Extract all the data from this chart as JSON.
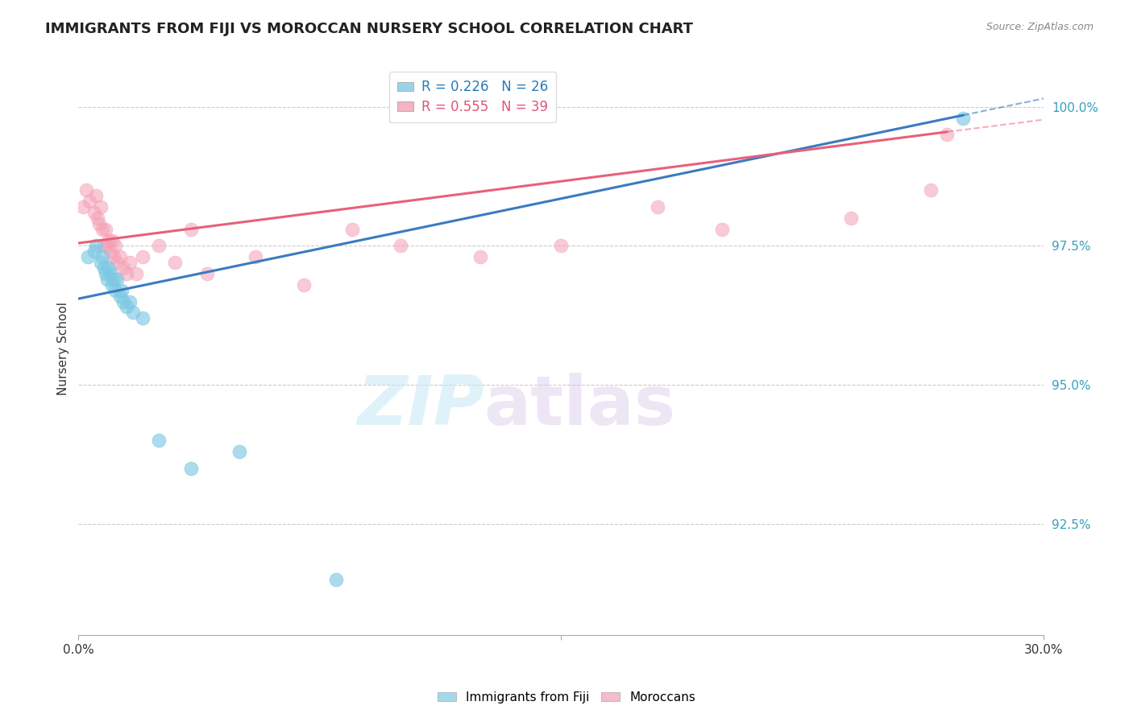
{
  "title": "IMMIGRANTS FROM FIJI VS MOROCCAN NURSERY SCHOOL CORRELATION CHART",
  "source_text": "Source: ZipAtlas.com",
  "ylabel": "Nursery School",
  "legend_blue_r": "R = 0.226",
  "legend_blue_n": "N = 26",
  "legend_pink_r": "R = 0.555",
  "legend_pink_n": "N = 39",
  "blue_color": "#7ec8e3",
  "pink_color": "#f4a0b5",
  "blue_line_color": "#3a7bbf",
  "pink_line_color": "#e8607a",
  "watermark_zip": "ZIP",
  "watermark_atlas": "atlas",
  "fiji_x": [
    0.3,
    0.5,
    0.55,
    0.7,
    0.75,
    0.8,
    0.85,
    0.9,
    0.95,
    1.0,
    1.05,
    1.1,
    1.15,
    1.2,
    1.3,
    1.35,
    1.4,
    1.5,
    1.6,
    1.7,
    2.0,
    2.5,
    3.5,
    5.0,
    8.0,
    27.5
  ],
  "fiji_y": [
    97.3,
    97.4,
    97.5,
    97.2,
    97.3,
    97.1,
    97.0,
    96.9,
    97.1,
    97.0,
    96.8,
    96.9,
    96.7,
    96.9,
    96.6,
    96.7,
    96.5,
    96.4,
    96.5,
    96.3,
    96.2,
    94.0,
    93.5,
    93.8,
    91.5,
    99.8
  ],
  "moroccan_x": [
    0.15,
    0.25,
    0.35,
    0.5,
    0.55,
    0.6,
    0.65,
    0.7,
    0.75,
    0.8,
    0.85,
    0.9,
    0.95,
    1.0,
    1.05,
    1.1,
    1.15,
    1.2,
    1.3,
    1.4,
    1.5,
    1.6,
    1.8,
    2.0,
    2.5,
    3.0,
    3.5,
    4.0,
    5.5,
    7.0,
    8.5,
    10.0,
    12.5,
    15.0,
    18.0,
    20.0,
    24.0,
    26.5,
    27.0
  ],
  "moroccan_y": [
    98.2,
    98.5,
    98.3,
    98.1,
    98.4,
    98.0,
    97.9,
    98.2,
    97.8,
    97.5,
    97.8,
    97.5,
    97.6,
    97.4,
    97.6,
    97.3,
    97.5,
    97.2,
    97.3,
    97.1,
    97.0,
    97.2,
    97.0,
    97.3,
    97.5,
    97.2,
    97.8,
    97.0,
    97.3,
    96.8,
    97.8,
    97.5,
    97.3,
    97.5,
    98.2,
    97.8,
    98.0,
    98.5,
    99.5
  ],
  "xmin": 0.0,
  "xmax": 30.0,
  "ymin": 90.5,
  "ymax": 100.8,
  "ytick_vals": [
    92.5,
    95.0,
    97.5,
    100.0
  ],
  "ytick_labels": [
    "92.5%",
    "95.0%",
    "97.5%",
    "100.0%"
  ],
  "blue_line_x0": 0.0,
  "blue_line_y0": 96.55,
  "blue_line_x1": 27.5,
  "blue_line_y1": 99.85,
  "blue_dash_x0": 27.5,
  "blue_dash_y0": 99.85,
  "blue_dash_x1": 30.0,
  "blue_dash_y1": 100.15,
  "pink_line_x0": 0.0,
  "pink_line_y0": 97.55,
  "pink_line_x1": 27.0,
  "pink_line_y1": 99.55,
  "pink_dash_x0": 27.0,
  "pink_dash_y0": 99.55,
  "pink_dash_x1": 30.0,
  "pink_dash_y1": 99.77
}
